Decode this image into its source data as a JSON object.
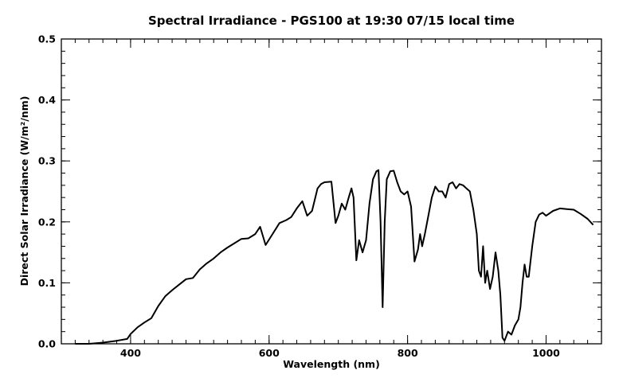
{
  "chart_data": {
    "type": "line",
    "title": "Spectral Irradiance - PGS100 at 19:30  07/15 local time",
    "xlabel": "Wavelength (nm)",
    "ylabel": "Direct Solar Irradiance (W/m²/nm)",
    "xlim": [
      300,
      1080
    ],
    "ylim": [
      0,
      0.5
    ],
    "x_ticks": [
      {
        "value": 400,
        "label": "400"
      },
      {
        "value": 600,
        "label": "600"
      },
      {
        "value": 800,
        "label": "800"
      },
      {
        "value": 1000,
        "label": "1000"
      }
    ],
    "x_minor_step": 20,
    "y_ticks": [
      {
        "value": 0.0,
        "label": "0.0"
      },
      {
        "value": 0.1,
        "label": "0.1"
      },
      {
        "value": 0.2,
        "label": "0.2"
      },
      {
        "value": 0.3,
        "label": "0.3"
      },
      {
        "value": 0.4,
        "label": "0.4"
      },
      {
        "value": 0.5,
        "label": "0.5"
      }
    ],
    "y_minor_step": 0.02,
    "grid": false,
    "line_color": "#000000",
    "series": [
      {
        "x": [
          320,
          340,
          360,
          380,
          395,
          400,
          410,
          420,
          430,
          440,
          450,
          460,
          470,
          480,
          490,
          500,
          510,
          520,
          530,
          540,
          550,
          560,
          570,
          580,
          587,
          595,
          605,
          615,
          625,
          632,
          640,
          648,
          655,
          662,
          670,
          675,
          680,
          690,
          696,
          700,
          705,
          710,
          715,
          719,
          722,
          726,
          730,
          735,
          740,
          745,
          750,
          755,
          758,
          761,
          764,
          767,
          770,
          775,
          780,
          785,
          790,
          795,
          800,
          805,
          810,
          815,
          818,
          821,
          825,
          830,
          835,
          840,
          845,
          850,
          855,
          860,
          865,
          870,
          875,
          880,
          885,
          890,
          895,
          900,
          903,
          906,
          909,
          912,
          915,
          919,
          923,
          927,
          931,
          934,
          937,
          940,
          945,
          950,
          955,
          960,
          963,
          966,
          969,
          972,
          975,
          980,
          985,
          990,
          995,
          1000,
          1010,
          1020,
          1030,
          1040,
          1050,
          1060,
          1068
        ],
        "y": [
          0.0,
          0.0,
          0.002,
          0.005,
          0.008,
          0.016,
          0.027,
          0.035,
          0.042,
          0.062,
          0.078,
          0.088,
          0.097,
          0.106,
          0.108,
          0.122,
          0.132,
          0.14,
          0.15,
          0.158,
          0.165,
          0.172,
          0.173,
          0.18,
          0.192,
          0.162,
          0.18,
          0.198,
          0.203,
          0.208,
          0.222,
          0.234,
          0.21,
          0.218,
          0.255,
          0.262,
          0.265,
          0.266,
          0.198,
          0.21,
          0.23,
          0.22,
          0.24,
          0.255,
          0.24,
          0.137,
          0.17,
          0.15,
          0.17,
          0.23,
          0.27,
          0.283,
          0.285,
          0.2,
          0.06,
          0.2,
          0.27,
          0.283,
          0.284,
          0.265,
          0.25,
          0.245,
          0.25,
          0.225,
          0.135,
          0.155,
          0.18,
          0.16,
          0.18,
          0.21,
          0.24,
          0.258,
          0.25,
          0.25,
          0.24,
          0.262,
          0.265,
          0.255,
          0.262,
          0.26,
          0.255,
          0.25,
          0.22,
          0.18,
          0.12,
          0.11,
          0.16,
          0.1,
          0.12,
          0.09,
          0.11,
          0.15,
          0.12,
          0.08,
          0.01,
          0.005,
          0.02,
          0.015,
          0.03,
          0.04,
          0.06,
          0.1,
          0.13,
          0.11,
          0.11,
          0.16,
          0.2,
          0.212,
          0.215,
          0.21,
          0.218,
          0.222,
          0.221,
          0.22,
          0.213,
          0.205,
          0.195
        ]
      }
    ]
  }
}
